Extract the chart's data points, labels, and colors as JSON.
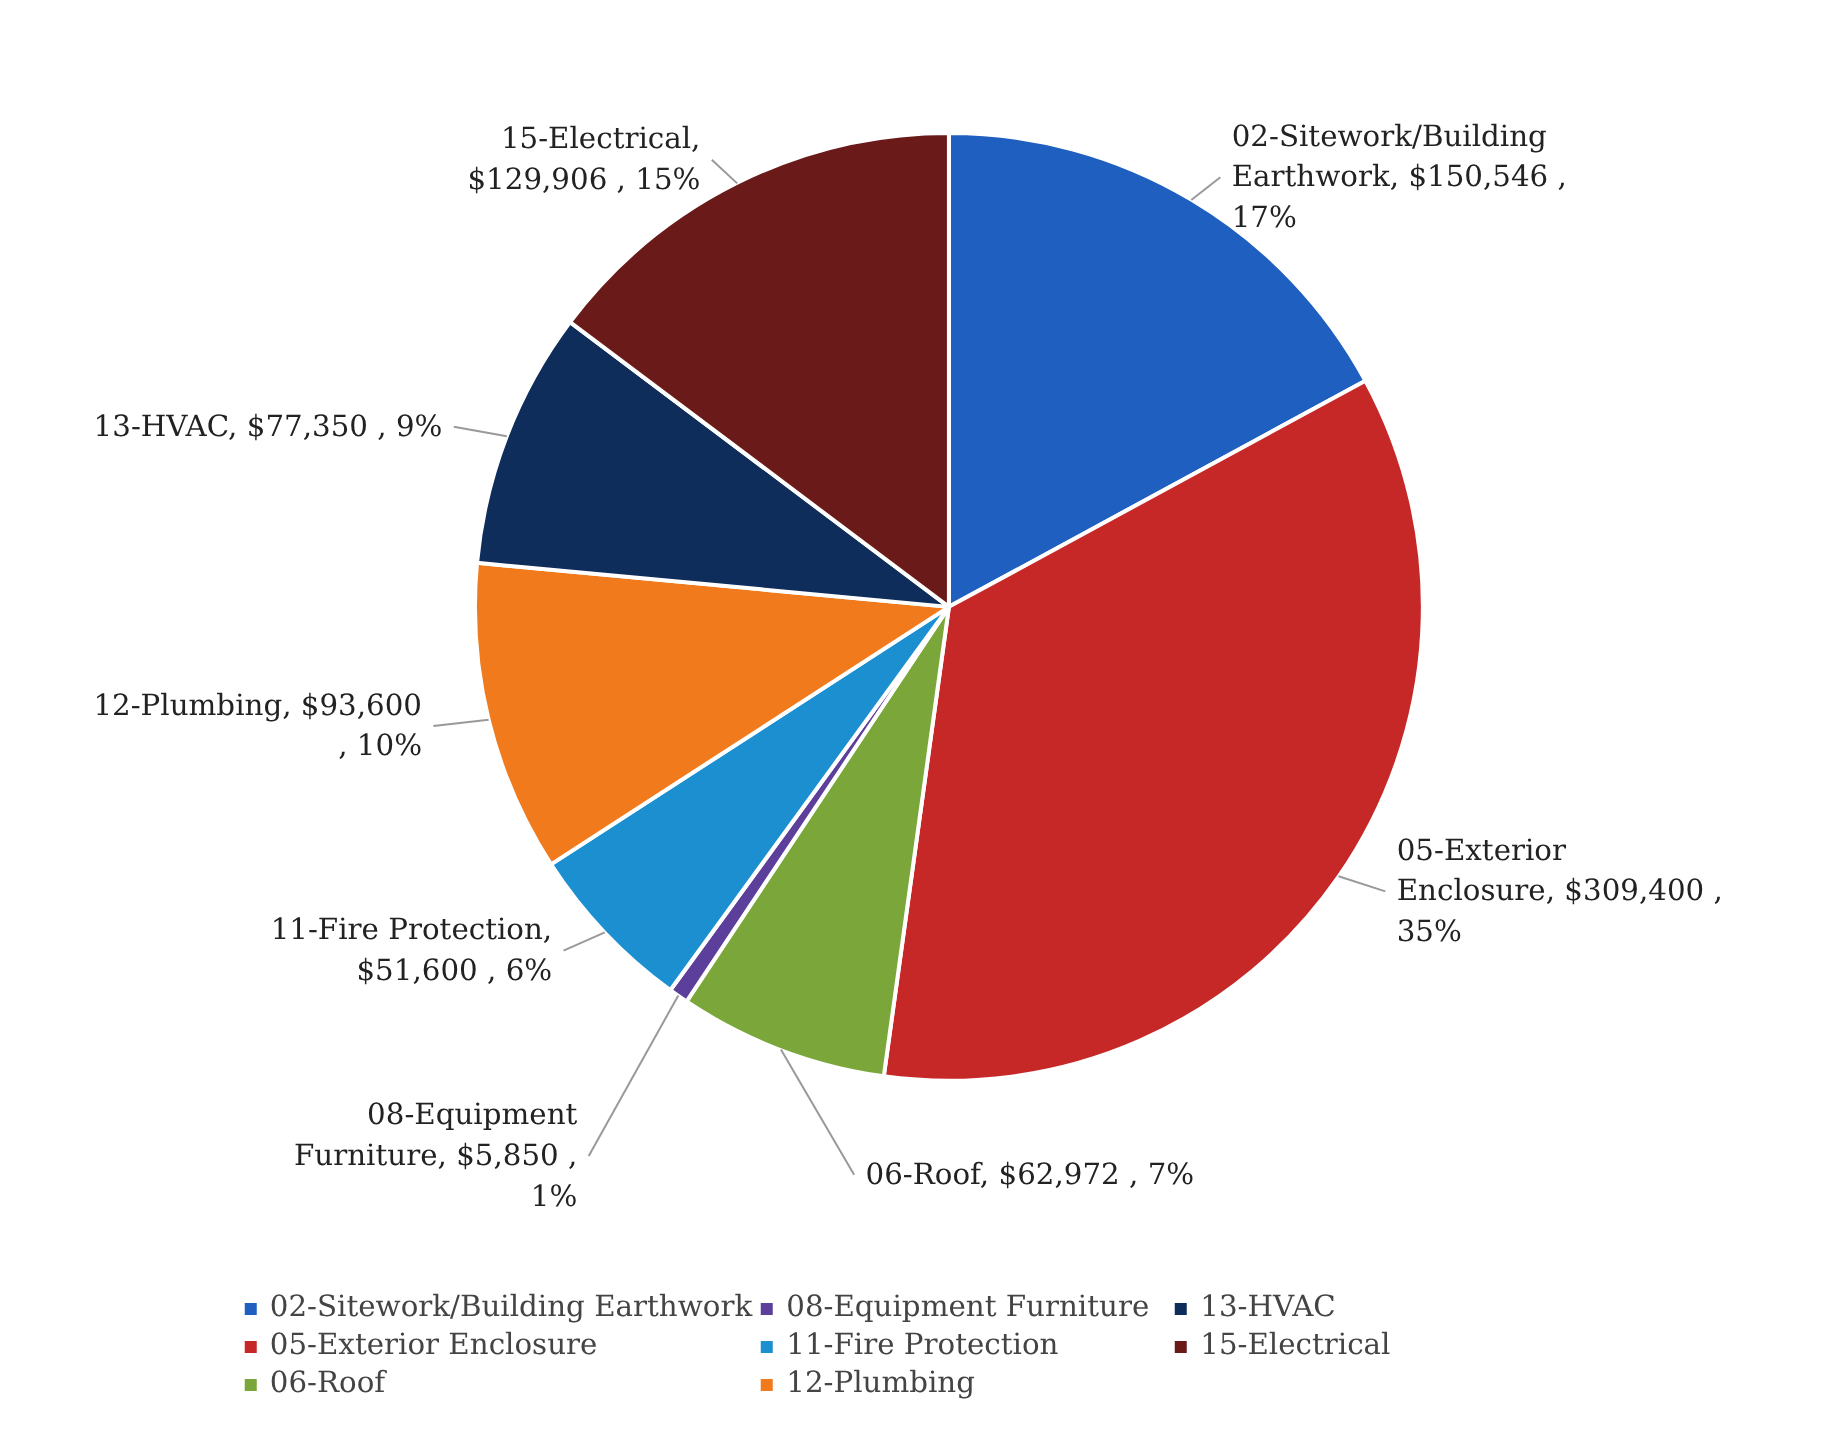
{
  "chart_data": {
    "type": "pie",
    "categories": [
      "02-Sitework/Building Earthwork",
      "05-Exterior Enclosure",
      "06-Roof",
      "08-Equipment Furniture",
      "11-Fire Protection",
      "12-Plumbing",
      "13-HVAC",
      "15-Electrical"
    ],
    "values": [
      150546,
      309400,
      62972,
      5850,
      51600,
      93600,
      77350,
      129906
    ],
    "value_labels": [
      "02-Sitework/Building Earthwork, $150,546 , 17%",
      "05-Exterior Enclosure, $309,400 , 35%",
      "06-Roof, $62,972 , 7%",
      "08-Equipment Furniture, $5,850 , 1%",
      "11-Fire Protection, $51,600 , 6%",
      "12-Plumbing, $93,600 , 10%",
      "13-HVAC, $77,350 , 9%",
      "15-Electrical, $129,906 , 15%"
    ],
    "colors": [
      "#1f5fbf",
      "#c62828",
      "#7aa63a",
      "#5b3f9a",
      "#1b8fd0",
      "#f07a1c",
      "#0f2d5a",
      "#6b1a1a"
    ],
    "legend": "bottom"
  }
}
